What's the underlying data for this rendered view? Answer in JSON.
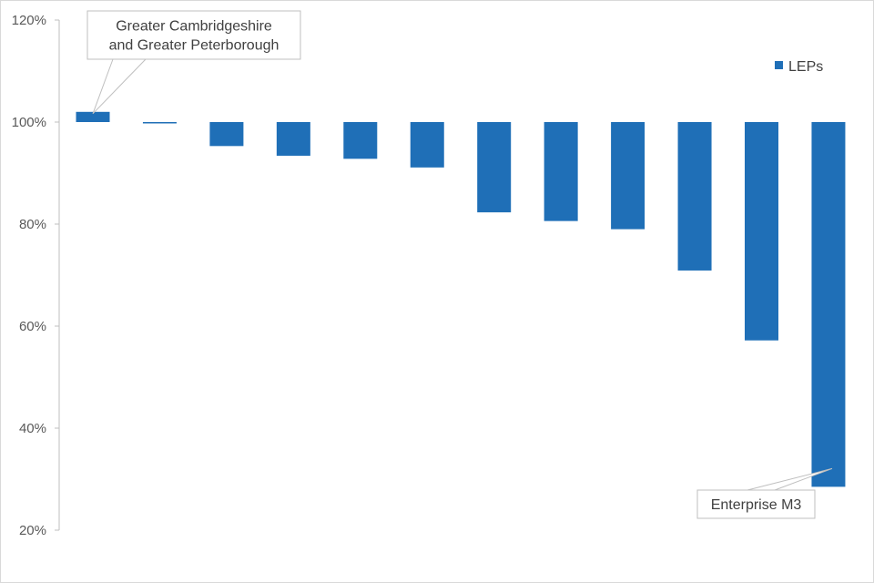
{
  "chart_data": {
    "type": "bar",
    "baseline": 1.0,
    "ylim": [
      0.2,
      1.2
    ],
    "yticks": [
      0.2,
      0.4,
      0.6,
      0.8,
      1.0,
      1.2
    ],
    "ytick_labels": [
      "20%",
      "40%",
      "60%",
      "80%",
      "100%",
      "120%"
    ],
    "series": [
      {
        "name": "LEPs",
        "color": "#1f6fb7",
        "values": [
          1.02,
          0.999,
          0.953,
          0.934,
          0.928,
          0.911,
          0.823,
          0.806,
          0.79,
          0.709,
          0.572,
          0.285
        ]
      }
    ],
    "grid": false,
    "legend_position": "top-right",
    "annotations": [
      {
        "text_lines": [
          "Greater Cambridgeshire",
          "and Greater Peterborough"
        ],
        "bar_index": 0
      },
      {
        "text_lines": [
          "Enterprise M3"
        ],
        "bar_index": 11
      }
    ]
  }
}
